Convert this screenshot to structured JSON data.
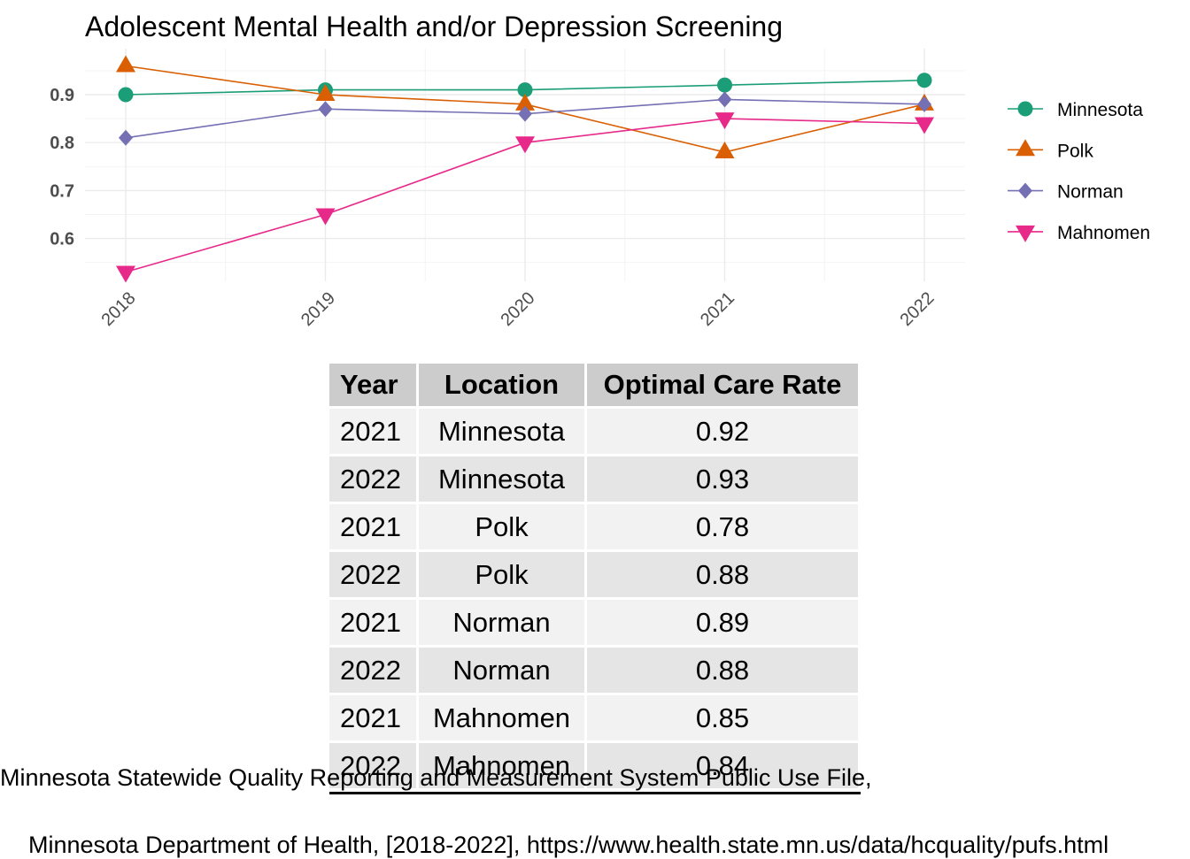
{
  "chart_data": {
    "type": "line",
    "title": "Adolescent Mental Health and/or Depression Screening",
    "xlabel": "",
    "ylabel": "",
    "x": [
      "2018",
      "2019",
      "2020",
      "2021",
      "2022"
    ],
    "yticks": [
      0.6,
      0.7,
      0.8,
      0.9
    ],
    "ylim": [
      0.51,
      0.98
    ],
    "grid": true,
    "legend": "right",
    "series": [
      {
        "name": "Minnesota",
        "color": "#1b9e77",
        "marker": "circle",
        "values": [
          0.9,
          0.91,
          0.91,
          0.92,
          0.93
        ]
      },
      {
        "name": "Polk",
        "color": "#d95f02",
        "marker": "triangle-up",
        "values": [
          0.96,
          0.9,
          0.88,
          0.78,
          0.88
        ]
      },
      {
        "name": "Norman",
        "color": "#7570b3",
        "marker": "diamond",
        "values": [
          0.81,
          0.87,
          0.86,
          0.89,
          0.88
        ]
      },
      {
        "name": "Mahnomen",
        "color": "#e7298a",
        "marker": "triangle-down",
        "values": [
          0.53,
          0.65,
          0.8,
          0.85,
          0.84
        ]
      }
    ]
  },
  "table": {
    "headers": [
      "Year",
      "Location",
      "Optimal Care Rate"
    ],
    "rows": [
      [
        "2021",
        "Minnesota",
        "0.92"
      ],
      [
        "2022",
        "Minnesota",
        "0.93"
      ],
      [
        "2021",
        "Polk",
        "0.78"
      ],
      [
        "2022",
        "Polk",
        "0.88"
      ],
      [
        "2021",
        "Norman",
        "0.89"
      ],
      [
        "2022",
        "Norman",
        "0.88"
      ],
      [
        "2021",
        "Mahnomen",
        "0.85"
      ],
      [
        "2022",
        "Mahnomen",
        "0.84"
      ]
    ]
  },
  "caption": {
    "line1": "Minnesota Statewide Quality Reporting and Measurement System Public Use File,",
    "line2": "Minnesota Department of Health, [2018-2022], https://www.health.state.mn.us/data/hcquality/pufs.html"
  }
}
